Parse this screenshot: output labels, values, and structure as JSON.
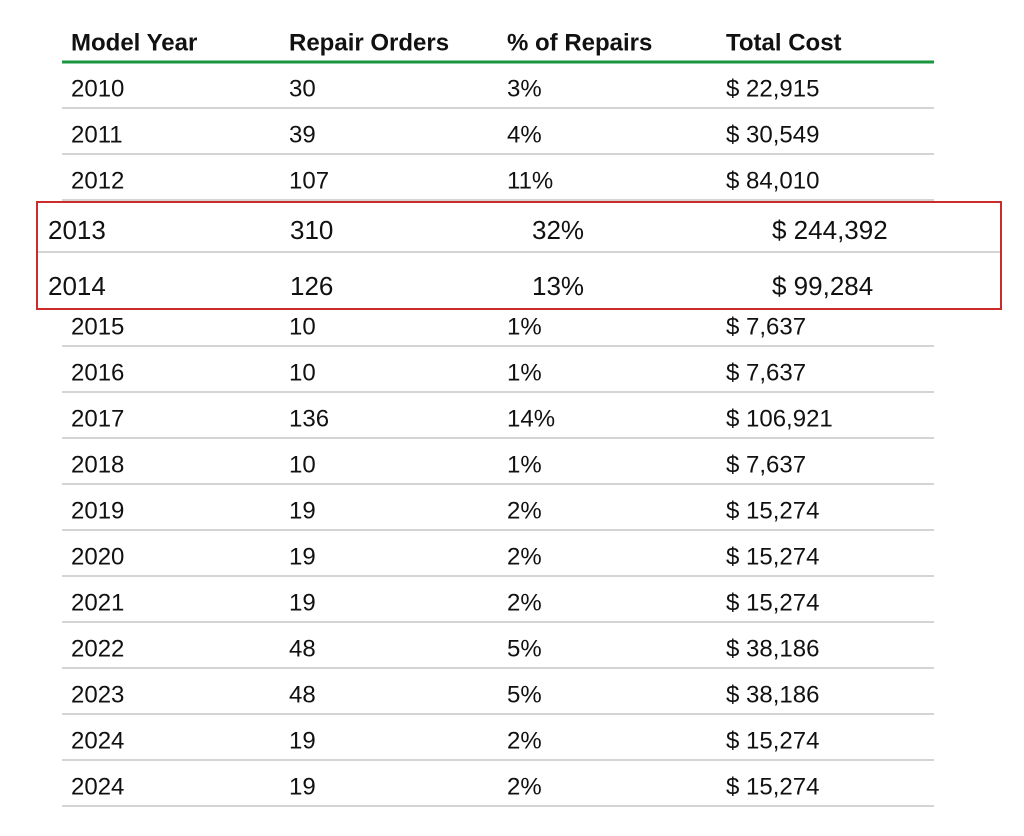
{
  "table": {
    "header": [
      "Model Year",
      "Repair Orders",
      "% of Repairs",
      "Total Cost"
    ],
    "rows": [
      [
        "2010",
        "30",
        "3%",
        "$ 22,915"
      ],
      [
        "2011",
        "39",
        "4%",
        "$ 30,549"
      ],
      [
        "2012",
        "107",
        "11%",
        "$ 84,010"
      ],
      [
        "2013",
        "310",
        "32%",
        "$ 244,392"
      ],
      [
        "2014",
        "126",
        "13%",
        "$ 99,284"
      ],
      [
        "2015",
        "10",
        "1%",
        "$ 7,637"
      ],
      [
        "2016",
        "10",
        "1%",
        "$ 7,637"
      ],
      [
        "2017",
        "136",
        "14%",
        "$ 106,921"
      ],
      [
        "2018",
        "10",
        "1%",
        "$ 7,637"
      ],
      [
        "2019",
        "19",
        "2%",
        "$ 15,274"
      ],
      [
        "2020",
        "19",
        "2%",
        "$ 15,274"
      ],
      [
        "2021",
        "19",
        "2%",
        "$ 15,274"
      ],
      [
        "2022",
        "48",
        "5%",
        "$ 38,186"
      ],
      [
        "2023",
        "48",
        "5%",
        "$ 38,186"
      ],
      [
        "2024",
        "19",
        "2%",
        "$ 15,274"
      ],
      [
        "2024",
        "19",
        "2%",
        "$ 15,274"
      ]
    ],
    "highlighted_rows": [
      3,
      4
    ]
  }
}
